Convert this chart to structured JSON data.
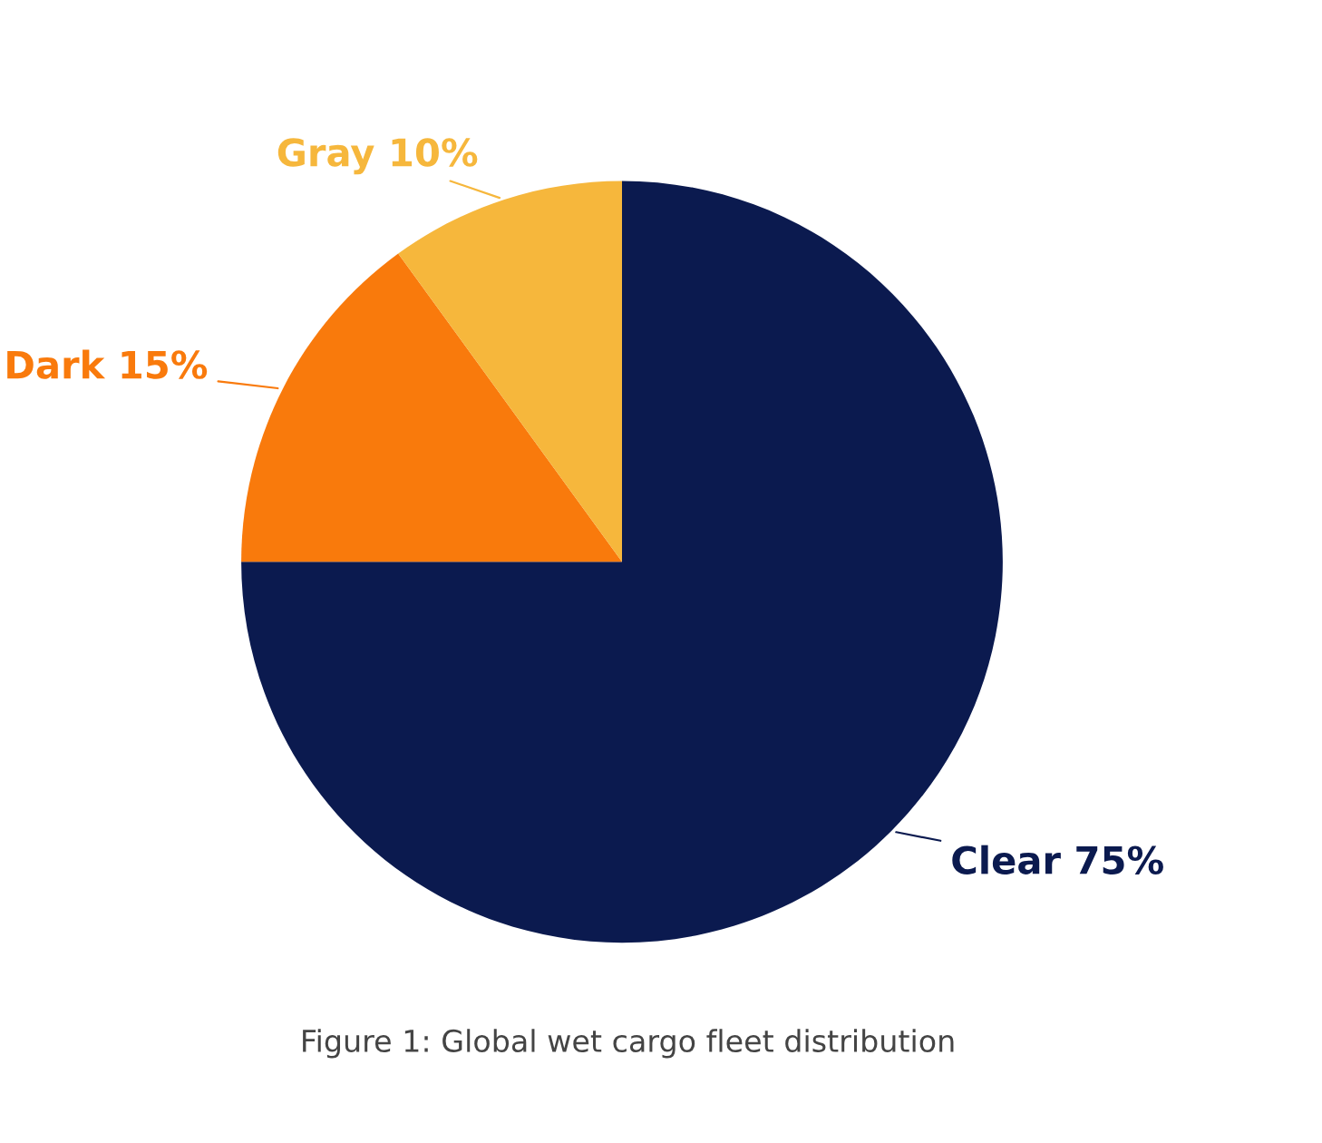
{
  "chart_data": {
    "type": "pie",
    "categories": [
      "Clear",
      "Dark",
      "Gray"
    ],
    "values": [
      75,
      15,
      10
    ],
    "value_labels": [
      "75%",
      "15%",
      "10%"
    ],
    "colors": [
      "#0b1a4f",
      "#f97a0c",
      "#f6b73c"
    ],
    "legend": false,
    "annotations": [
      "Figure 1: Global wet cargo fleet distribution"
    ]
  }
}
